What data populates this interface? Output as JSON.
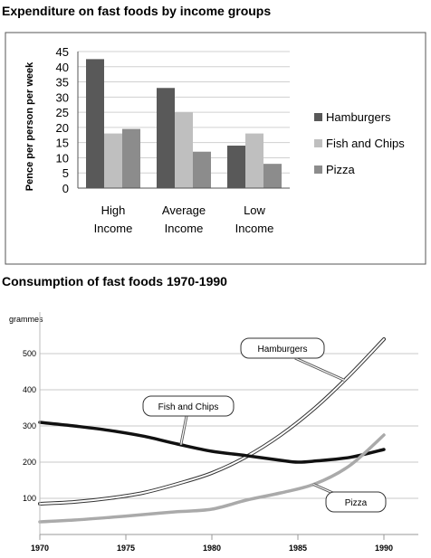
{
  "chart_data": [
    {
      "type": "bar",
      "title": "Expenditure on fast foods by income groups",
      "ylabel": "Pence per person per week",
      "xlabel": "",
      "ylim": [
        0,
        45
      ],
      "yticks": [
        0,
        5,
        10,
        15,
        20,
        25,
        30,
        35,
        40,
        45
      ],
      "categories": [
        [
          "High",
          "Income"
        ],
        [
          "Average",
          "Income"
        ],
        [
          "Low",
          "Income"
        ]
      ],
      "grid": true,
      "legend_position": "right",
      "series": [
        {
          "name": "Hamburgers",
          "color": "#595959",
          "values": [
            42.5,
            33,
            14
          ]
        },
        {
          "name": "Fish and Chips",
          "color": "#bfbfbf",
          "values": [
            18,
            25,
            18
          ]
        },
        {
          "name": "Pizza",
          "color": "#8c8c8c",
          "values": [
            19.5,
            12,
            8
          ]
        }
      ]
    },
    {
      "type": "line",
      "title": "Consumption of fast foods 1970-1990",
      "ylabel": "grammes",
      "xlabel": "",
      "xlim": [
        1970,
        1992
      ],
      "ylim": [
        0,
        550
      ],
      "xticks": [
        1970,
        1975,
        1980,
        1985,
        1990
      ],
      "yticks": [
        100,
        200,
        300,
        400,
        500
      ],
      "grid": true,
      "series": [
        {
          "name": "Hamburgers",
          "style": "double-outline",
          "x": [
            1970,
            1972,
            1974,
            1976,
            1978,
            1980,
            1982,
            1984,
            1986,
            1988,
            1990
          ],
          "y": [
            85,
            90,
            100,
            115,
            140,
            170,
            215,
            275,
            350,
            440,
            540
          ]
        },
        {
          "name": "Fish and Chips",
          "style": "thick-black",
          "x": [
            1970,
            1972,
            1974,
            1976,
            1978,
            1980,
            1982,
            1984,
            1985,
            1986,
            1988,
            1990
          ],
          "y": [
            310,
            300,
            288,
            272,
            250,
            230,
            218,
            205,
            200,
            203,
            213,
            235
          ]
        },
        {
          "name": "Pizza",
          "style": "light-gray",
          "x": [
            1970,
            1972,
            1974,
            1976,
            1978,
            1980,
            1982,
            1984,
            1986,
            1988,
            1990
          ],
          "y": [
            35,
            40,
            47,
            55,
            63,
            70,
            95,
            115,
            140,
            190,
            275
          ]
        }
      ],
      "annotations": [
        {
          "text": "Hamburgers",
          "series": "Hamburgers"
        },
        {
          "text": "Fish and Chips",
          "series": "Fish and Chips"
        },
        {
          "text": "Pizza",
          "series": "Pizza"
        }
      ]
    }
  ]
}
